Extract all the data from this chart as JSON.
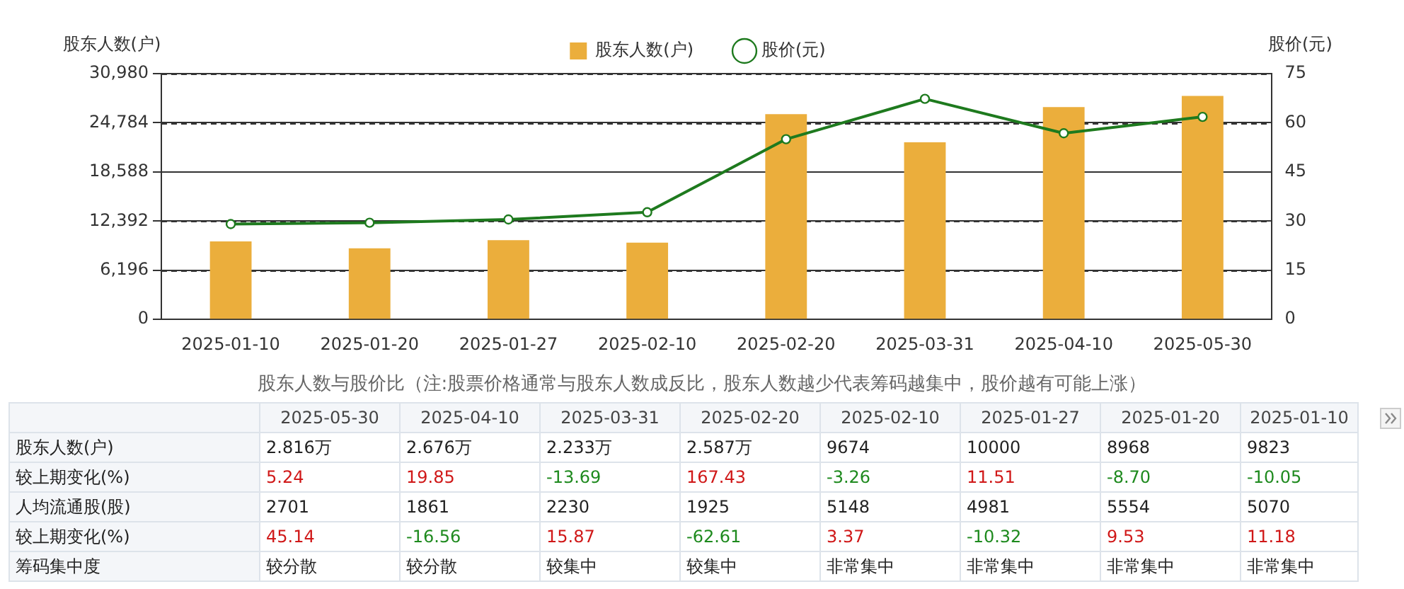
{
  "chart_data": {
    "type": "bar",
    "categories": [
      "2025-01-10",
      "2025-01-20",
      "2025-01-27",
      "2025-02-10",
      "2025-02-20",
      "2025-03-31",
      "2025-04-10",
      "2025-05-30"
    ],
    "series": [
      {
        "name": "股东人数(户)",
        "color": "#ebae3c",
        "values": [
          9823,
          8968,
          10000,
          9674,
          25870,
          22330,
          26760,
          28160
        ]
      },
      {
        "name": "股价(元)",
        "type": "line",
        "axis": "y2",
        "color": "#1e7a1e",
        "values": [
          29.1,
          29.5,
          30.5,
          32.7,
          55,
          67.3,
          56.8,
          61.8
        ]
      }
    ],
    "ylabel": "股东人数(户)",
    "y2label": "股价(元)",
    "ylim": [
      0,
      30980
    ],
    "yticks": [
      0,
      {
        "value": 6196,
        "label": "6,196"
      },
      {
        "value": 12392,
        "label": "12,392"
      },
      {
        "value": 18588,
        "label": "18,588"
      },
      {
        "value": 24784,
        "label": "24,784"
      },
      {
        "value": 30980,
        "label": "30,980"
      }
    ],
    "y2lim": [
      0,
      75
    ],
    "y2ticks": [
      0,
      15,
      30,
      45,
      60,
      75
    ],
    "grid": "y",
    "legend": "top",
    "marker": "circle",
    "line_style": "solid",
    "annotations": [
      "股东人数与股价比（注:股票价格通常与股东人数成反比，股东人数越少代表筹码越集中，股价越有可能上涨）",
      "2025-05-30",
      "2025-04-10",
      "2025-03-31",
      "2025-02-20",
      "2025-02-10",
      "2025-01-27",
      "2025-01-20",
      "2025-01-10",
      "股东人数(户)",
      "2.816万",
      "2.676万",
      "2.233万",
      "2.587万",
      "9674",
      "10000",
      "8968",
      "9823",
      "较上期变化(%)",
      "5.24",
      "19.85",
      "-13.69",
      "167.43",
      "-3.26",
      "11.51",
      "-8.70",
      "-10.05",
      "人均流通股(股)",
      "2701",
      "1861",
      "2230",
      "1925",
      "5148",
      "4981",
      "5554",
      "5070",
      "较上期变化(%)",
      "45.14",
      "-16.56",
      "15.87",
      "-62.61",
      "3.37",
      "-10.32",
      "9.53",
      "11.18",
      "筹码集中度",
      "较分散",
      "较分散",
      "较集中",
      "较集中",
      "非常集中",
      "非常集中",
      "非常集中",
      "非常集中"
    ]
  }
}
